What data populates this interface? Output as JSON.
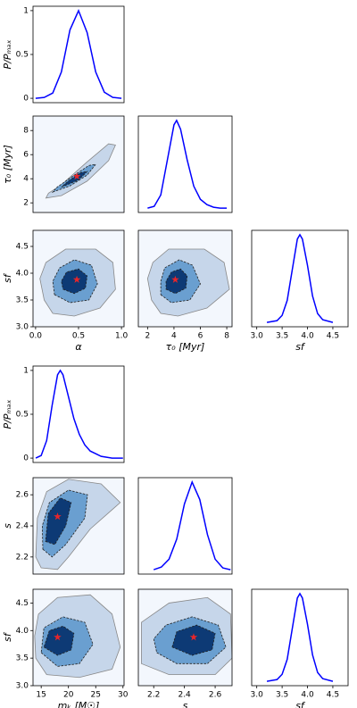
{
  "chart_data": [
    {
      "type": "line",
      "xlim": [
        -0.03,
        1.03
      ],
      "ylim": [
        -0.05,
        1.05
      ],
      "yticks": [
        0,
        0.5,
        1
      ],
      "ylabel": "P/Pₘₐₓ",
      "color": "#0000ff",
      "x": [
        0,
        0.1,
        0.2,
        0.3,
        0.4,
        0.5,
        0.6,
        0.7,
        0.8,
        0.9,
        1.0
      ],
      "values": [
        0,
        0.01,
        0.06,
        0.3,
        0.78,
        1.0,
        0.75,
        0.3,
        0.07,
        0.01,
        0
      ]
    },
    {
      "type": "contour",
      "xlim": [
        -0.03,
        1.03
      ],
      "ylim": [
        1.2,
        9.2
      ],
      "yticks": [
        2,
        4,
        6,
        8
      ],
      "ylabel": "τ₀ [Myr]",
      "series": [
        {
          "color": "#c6d6ea",
          "linestyle": "solid",
          "x": [
            0.12,
            0.3,
            0.6,
            0.85,
            0.93,
            0.85,
            0.6,
            0.3,
            0.15
          ],
          "y": [
            2.4,
            2.6,
            3.8,
            5.5,
            6.8,
            6.9,
            5.4,
            3.5,
            2.8
          ]
        },
        {
          "color": "#6a9fd0",
          "linestyle": "dashed",
          "x": [
            0.2,
            0.4,
            0.6,
            0.7,
            0.62,
            0.45,
            0.25
          ],
          "y": [
            2.9,
            3.4,
            4.3,
            5.2,
            5.1,
            4.3,
            3.3
          ]
        },
        {
          "color": "#0d3a75",
          "linestyle": "dashed",
          "x": [
            0.3,
            0.5,
            0.6,
            0.52,
            0.38
          ],
          "y": [
            3.3,
            3.9,
            4.6,
            4.5,
            3.8
          ]
        }
      ],
      "best": {
        "x": 0.48,
        "y": 4.2,
        "color": "#e8252a"
      }
    },
    {
      "type": "line",
      "xlim": [
        1.3,
        8.4
      ],
      "ylim": [
        -0.05,
        1.05
      ],
      "color": "#0000ff",
      "x": [
        2,
        2.5,
        3,
        3.5,
        4,
        4.2,
        4.5,
        5,
        5.5,
        6,
        6.5,
        7,
        7.5,
        8
      ],
      "values": [
        0,
        0.02,
        0.15,
        0.55,
        0.95,
        1.0,
        0.9,
        0.55,
        0.25,
        0.1,
        0.04,
        0.01,
        0,
        0
      ]
    },
    {
      "type": "contour",
      "xlim": [
        -0.03,
        1.03
      ],
      "ylim": [
        3.0,
        4.8
      ],
      "xticks": [
        {
          "value": 0.0,
          "label": "0.0"
        },
        0.5,
        {
          "value": 1.0,
          "label": "1.0"
        }
      ],
      "xlabel": "α",
      "yticks": [
        {
          "value": 3.0,
          "label": "3.0"
        },
        3.5,
        {
          "value": 4.0,
          "label": "4.0"
        },
        4.5
      ],
      "ylabel": "sf",
      "series": [
        {
          "color": "#c6d6ea",
          "linestyle": "solid",
          "x": [
            0.1,
            0.2,
            0.45,
            0.75,
            0.93,
            0.9,
            0.7,
            0.35,
            0.12,
            0.05
          ],
          "y": [
            3.5,
            3.25,
            3.2,
            3.35,
            3.7,
            4.2,
            4.45,
            4.45,
            4.2,
            3.9
          ]
        },
        {
          "color": "#6a9fd0",
          "linestyle": "dashed",
          "x": [
            0.22,
            0.4,
            0.62,
            0.72,
            0.65,
            0.45,
            0.28,
            0.2
          ],
          "y": [
            3.6,
            3.45,
            3.5,
            3.8,
            4.15,
            4.25,
            4.1,
            3.85
          ]
        },
        {
          "color": "#0d3a75",
          "linestyle": "dashed",
          "x": [
            0.32,
            0.45,
            0.58,
            0.6,
            0.5,
            0.36,
            0.3
          ],
          "y": [
            3.7,
            3.62,
            3.72,
            3.95,
            4.08,
            4.02,
            3.85
          ]
        }
      ],
      "best": {
        "x": 0.48,
        "y": 3.88,
        "color": "#e8252a"
      }
    },
    {
      "type": "contour",
      "xlim": [
        1.3,
        8.4
      ],
      "ylim": [
        3.0,
        4.8
      ],
      "xticks": [
        2,
        4,
        6,
        8
      ],
      "xlabel": "τ₀ [Myr]",
      "series": [
        {
          "color": "#c6d6ea",
          "linestyle": "solid",
          "x": [
            2.3,
            3,
            4.3,
            6.5,
            8.2,
            7.8,
            6.3,
            3.6,
            2.4,
            2.0
          ],
          "y": [
            3.5,
            3.25,
            3.2,
            3.35,
            3.7,
            4.2,
            4.45,
            4.45,
            4.2,
            3.9
          ]
        },
        {
          "color": "#6a9fd0",
          "linestyle": "dashed",
          "x": [
            3,
            3.8,
            5.2,
            6,
            5.4,
            4.4,
            3.3,
            3.0
          ],
          "y": [
            3.6,
            3.45,
            3.5,
            3.8,
            4.15,
            4.25,
            4.1,
            3.85
          ]
        },
        {
          "color": "#0d3a75",
          "linestyle": "dashed",
          "x": [
            3.4,
            4.1,
            4.9,
            5.0,
            4.5,
            3.8,
            3.4
          ],
          "y": [
            3.7,
            3.62,
            3.72,
            3.95,
            4.08,
            4.02,
            3.85
          ]
        }
      ],
      "best": {
        "x": 4.1,
        "y": 3.88,
        "color": "#e8252a"
      }
    },
    {
      "type": "line",
      "xlim": [
        2.9,
        4.8
      ],
      "ylim": [
        -0.05,
        1.05
      ],
      "color": "#0000ff",
      "xticks": [
        {
          "value": 3.0,
          "label": "3.0"
        },
        3.5,
        {
          "value": 4.0,
          "label": "4.0"
        },
        4.5
      ],
      "xlabel": "sf",
      "x": [
        3.2,
        3.4,
        3.5,
        3.6,
        3.7,
        3.8,
        3.85,
        3.9,
        4.0,
        4.1,
        4.2,
        4.3,
        4.5
      ],
      "values": [
        0,
        0.02,
        0.08,
        0.25,
        0.6,
        0.95,
        1.0,
        0.95,
        0.65,
        0.3,
        0.1,
        0.03,
        0
      ]
    },
    {
      "type": "line",
      "xlim": [
        13.5,
        30.2
      ],
      "ylim": [
        -0.05,
        1.05
      ],
      "yticks": [
        0,
        0.5,
        1
      ],
      "ylabel": "P/Pₘₐₓ",
      "color": "#0000ff",
      "x": [
        14,
        15,
        16,
        17,
        18,
        18.5,
        19,
        20,
        21,
        22,
        23,
        24,
        26,
        28,
        30
      ],
      "values": [
        0,
        0.03,
        0.2,
        0.6,
        0.95,
        1.0,
        0.95,
        0.7,
        0.45,
        0.27,
        0.15,
        0.08,
        0.02,
        0,
        0
      ]
    },
    {
      "type": "contour",
      "xlim": [
        13.5,
        30.2
      ],
      "ylim": [
        2.09,
        2.71
      ],
      "yticks": [
        2.2,
        2.4,
        2.6
      ],
      "ylabel": "s",
      "series": [
        {
          "color": "#c6d6ea",
          "linestyle": "solid",
          "x": [
            14,
            15,
            18,
            20,
            24,
            29.5,
            26,
            20,
            16,
            14.3
          ],
          "y": [
            2.2,
            2.13,
            2.12,
            2.2,
            2.38,
            2.55,
            2.67,
            2.7,
            2.62,
            2.45
          ]
        },
        {
          "color": "#6a9fd0",
          "linestyle": "dashed",
          "x": [
            15.3,
            17,
            19.5,
            23,
            23.5,
            20,
            16.5,
            15.2
          ],
          "y": [
            2.25,
            2.2,
            2.28,
            2.45,
            2.6,
            2.63,
            2.55,
            2.4
          ]
        },
        {
          "color": "#0d3a75",
          "linestyle": "dashed",
          "x": [
            15.8,
            17.5,
            19.5,
            20.5,
            18.5,
            16.3
          ],
          "y": [
            2.3,
            2.28,
            2.4,
            2.55,
            2.58,
            2.48
          ]
        }
      ],
      "best": {
        "x": 18,
        "y": 2.46,
        "color": "#e8252a"
      }
    },
    {
      "type": "line",
      "xlim": [
        2.1,
        2.71
      ],
      "ylim": [
        -0.05,
        1.05
      ],
      "color": "#0000ff",
      "x": [
        2.2,
        2.25,
        2.3,
        2.35,
        2.4,
        2.45,
        2.5,
        2.55,
        2.6,
        2.65,
        2.7
      ],
      "values": [
        0,
        0.03,
        0.12,
        0.35,
        0.75,
        1.0,
        0.8,
        0.4,
        0.12,
        0.02,
        0
      ]
    },
    {
      "type": "contour",
      "xlim": [
        13.5,
        30.2
      ],
      "ylim": [
        3.0,
        4.75
      ],
      "xticks": [
        15,
        20,
        25,
        30
      ],
      "xlabel": "mₖ [M☉]",
      "yticks": [
        {
          "value": 3.0,
          "label": "3.0"
        },
        3.5,
        {
          "value": 4.0,
          "label": "4.0"
        },
        4.5
      ],
      "ylabel": "sf",
      "series": [
        {
          "color": "#c6d6ea",
          "linestyle": "solid",
          "x": [
            14,
            16,
            22,
            28,
            29.5,
            28,
            24,
            18,
            14.5,
            13.8
          ],
          "y": [
            3.5,
            3.2,
            3.15,
            3.3,
            3.7,
            4.3,
            4.65,
            4.6,
            4.3,
            3.9
          ]
        },
        {
          "color": "#6a9fd0",
          "linestyle": "dashed",
          "x": [
            15,
            18,
            22,
            24.5,
            23,
            19,
            15.5
          ],
          "y": [
            3.6,
            3.35,
            3.4,
            3.75,
            4.15,
            4.25,
            4.05
          ]
        },
        {
          "color": "#0d3a75",
          "linestyle": "dashed",
          "x": [
            15.5,
            18,
            20.5,
            21,
            19,
            16.5
          ],
          "y": [
            3.7,
            3.55,
            3.65,
            3.95,
            4.08,
            4.0
          ]
        }
      ],
      "best": {
        "x": 18,
        "y": 3.88,
        "color": "#e8252a"
      }
    },
    {
      "type": "contour",
      "xlim": [
        2.1,
        2.71
      ],
      "ylim": [
        3.0,
        4.75
      ],
      "xticks": [
        2.2,
        2.4,
        2.6
      ],
      "xlabel": "s",
      "series": [
        {
          "color": "#c6d6ea",
          "linestyle": "solid",
          "x": [
            2.12,
            2.3,
            2.6,
            2.71,
            2.7,
            2.55,
            2.3,
            2.12
          ],
          "y": [
            3.4,
            3.2,
            3.2,
            3.5,
            4.3,
            4.6,
            4.5,
            4.15
          ]
        },
        {
          "color": "#6a9fd0",
          "linestyle": "dashed",
          "x": [
            2.22,
            2.35,
            2.55,
            2.67,
            2.62,
            2.45,
            2.28,
            2.2
          ],
          "y": [
            3.6,
            3.4,
            3.4,
            3.7,
            4.1,
            4.25,
            4.1,
            3.85
          ]
        },
        {
          "color": "#0d3a75",
          "linestyle": "dashed",
          "x": [
            2.32,
            2.45,
            2.58,
            2.6,
            2.48,
            2.35
          ],
          "y": [
            3.7,
            3.55,
            3.65,
            3.95,
            4.1,
            3.98
          ]
        }
      ],
      "best": {
        "x": 2.46,
        "y": 3.88,
        "color": "#e8252a"
      }
    },
    {
      "type": "line",
      "xlim": [
        2.9,
        4.8
      ],
      "ylim": [
        -0.05,
        1.05
      ],
      "color": "#0000ff",
      "xticks": [
        {
          "value": 3.0,
          "label": "3.0"
        },
        3.5,
        {
          "value": 4.0,
          "label": "4.0"
        },
        4.5
      ],
      "xlabel": "sf",
      "x": [
        3.2,
        3.4,
        3.5,
        3.6,
        3.7,
        3.8,
        3.85,
        3.9,
        4.0,
        4.1,
        4.2,
        4.3,
        4.5
      ],
      "values": [
        0,
        0.02,
        0.08,
        0.25,
        0.6,
        0.95,
        1.0,
        0.95,
        0.65,
        0.3,
        0.1,
        0.03,
        0
      ]
    }
  ]
}
